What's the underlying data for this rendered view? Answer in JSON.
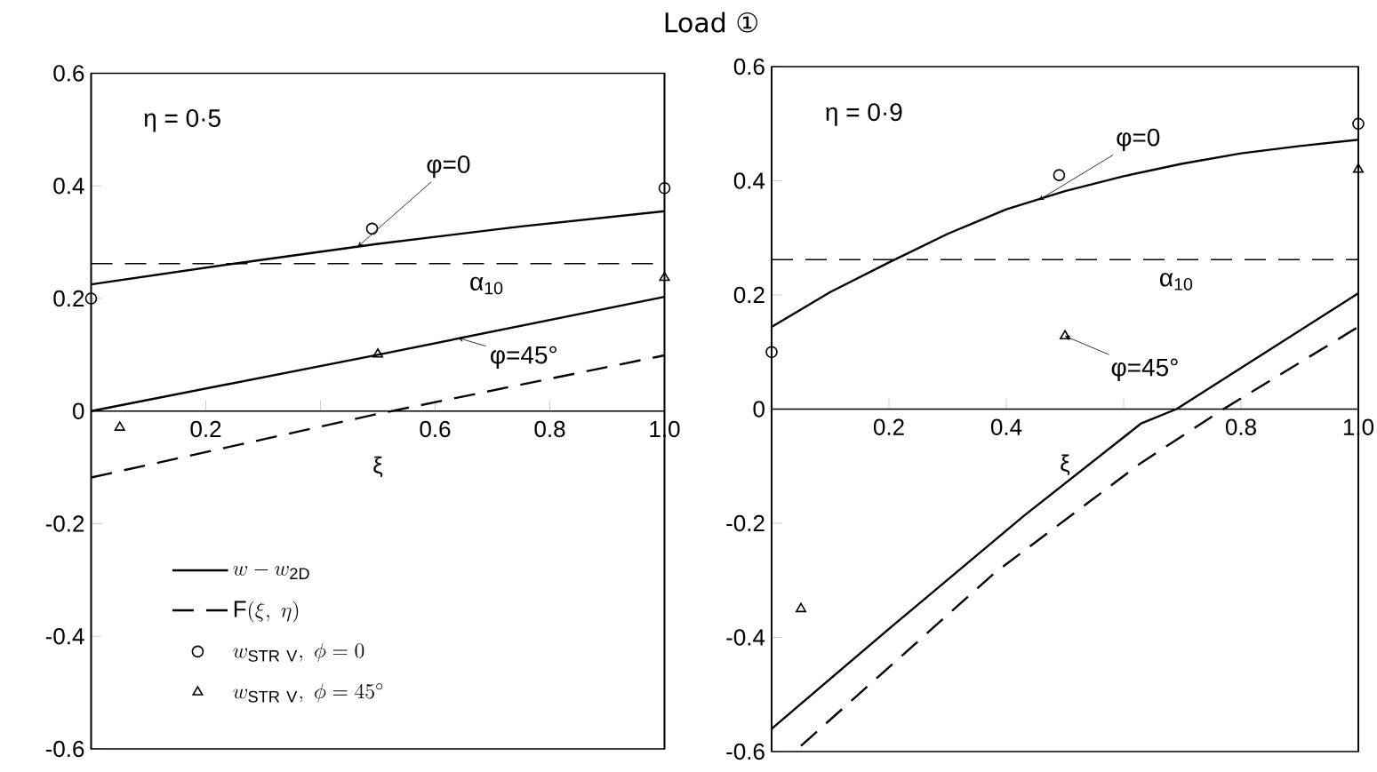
{
  "chart_data": [
    {
      "type": "line",
      "title": "Load ①",
      "xlabel": "ξ",
      "xlim": [
        0,
        1
      ],
      "ylim": [
        -0.6,
        0.6
      ],
      "xticks": [
        0.2,
        {
          "value": 0.4,
          "label": null
        },
        0.6,
        0.8,
        {
          "value": 1,
          "label": "1.0"
        }
      ],
      "yticks": [
        -0.6,
        -0.4,
        -0.2,
        0,
        0.2,
        0.4,
        0.6
      ],
      "legend": "bottom left",
      "series": [
        {
          "name": "w - w_{\\mathrm{2D}}",
          "color": "#000000",
          "line_style": "solid",
          "x": [
            0,
            0.25,
            0.5,
            0.75,
            1.0
          ],
          "values": [
            0.225,
            0.262,
            0.297,
            0.328,
            0.355
          ]
        },
        {
          "name": "\\mathrm{F}(\\xi,\\ \\eta)",
          "color": "#000000",
          "line_style": "dashed",
          "x": [
            0,
            0.5,
            1.0
          ],
          "values": [
            -0.118,
            -0.005,
            0.099
          ]
        },
        {
          "type": "scatter",
          "name": "w_{\\mathrm{STR\\ V}},\\ \\phi = 0",
          "color": "#000000",
          "marker": "circle",
          "x": [
            0,
            0.49,
            1.0
          ],
          "values": [
            0.2,
            0.324,
            0.396
          ]
        },
        {
          "type": "scatter",
          "name": "w_{\\mathrm{STR\\ V}},\\ \\phi = 45^{\\circ}",
          "color": "#000000",
          "marker": "triangle",
          "x": [
            0.05,
            0.5,
            1.0
          ],
          "values": [
            -0.029,
            0.101,
            0.237
          ]
        },
        {
          "color": "#000000",
          "line_style": "solid",
          "x": [
            0,
            0.5,
            1.0
          ],
          "values": [
            0,
            0.1,
            0.203
          ]
        }
      ],
      "ref_lines": [
        {
          "axis": "y",
          "value": 0.262,
          "label": "α$_{10}$",
          "color": "#000000",
          "line_style": "dashed"
        }
      ],
      "annotations": [
        "η = 0·5",
        {
          "text": "φ=0",
          "x": 0.465,
          "y": 0.292
        },
        {
          "text": "φ=45°",
          "x": 0.64,
          "y": 0.13
        }
      ]
    },
    {
      "type": "line",
      "xlabel": "ξ",
      "xlim": [
        0,
        1
      ],
      "ylim": [
        -0.6,
        0.6
      ],
      "xticks": [
        0.2,
        0.4,
        {
          "value": 0.6,
          "label": null
        },
        0.8,
        {
          "value": 1,
          "label": "1.0"
        }
      ],
      "yticks": [
        -0.6,
        -0.4,
        -0.2,
        0,
        0.2,
        0.4,
        0.6
      ],
      "series": [
        {
          "color": "#000000",
          "line_style": "solid",
          "x": [
            0,
            0.1,
            0.2,
            0.3,
            0.4,
            0.5,
            0.6,
            0.7,
            0.8,
            0.9,
            1.0
          ],
          "values": [
            0.144,
            0.205,
            0.257,
            0.307,
            0.35,
            0.382,
            0.408,
            0.43,
            0.448,
            0.461,
            0.472
          ]
        },
        {
          "color": "#000000",
          "line_style": "solid",
          "x": [
            0,
            0.2,
            0.43,
            0.63,
            0.69,
            1.0
          ],
          "values": [
            -0.56,
            -0.385,
            -0.187,
            -0.025,
            0,
            0.203
          ]
        },
        {
          "color": "#000000",
          "line_style": "dashed",
          "x": [
            0.05,
            0.38,
            0.63,
            0.77,
            1.0
          ],
          "values": [
            -0.59,
            -0.287,
            -0.094,
            0,
            0.144
          ]
        },
        {
          "type": "scatter",
          "color": "#000000",
          "marker": "circle",
          "x": [
            0,
            0.49,
            1.0
          ],
          "values": [
            0.1,
            0.41,
            0.5
          ]
        },
        {
          "type": "scatter",
          "color": "#000000",
          "marker": "triangle",
          "x": [
            0.05,
            0.5,
            1.0
          ],
          "values": [
            -0.35,
            0.128,
            0.42
          ]
        }
      ],
      "ref_lines": [
        {
          "axis": "y",
          "value": 0.262,
          "label": "α$_{10}$",
          "color": "#000000",
          "line_style": "dashed"
        }
      ],
      "annotations": [
        "η = 0·9",
        {
          "text": "φ=0",
          "x": 0.455,
          "y": 0.366
        },
        {
          "text": "φ=45°",
          "x": 0.5,
          "y": 0.128
        }
      ]
    }
  ]
}
